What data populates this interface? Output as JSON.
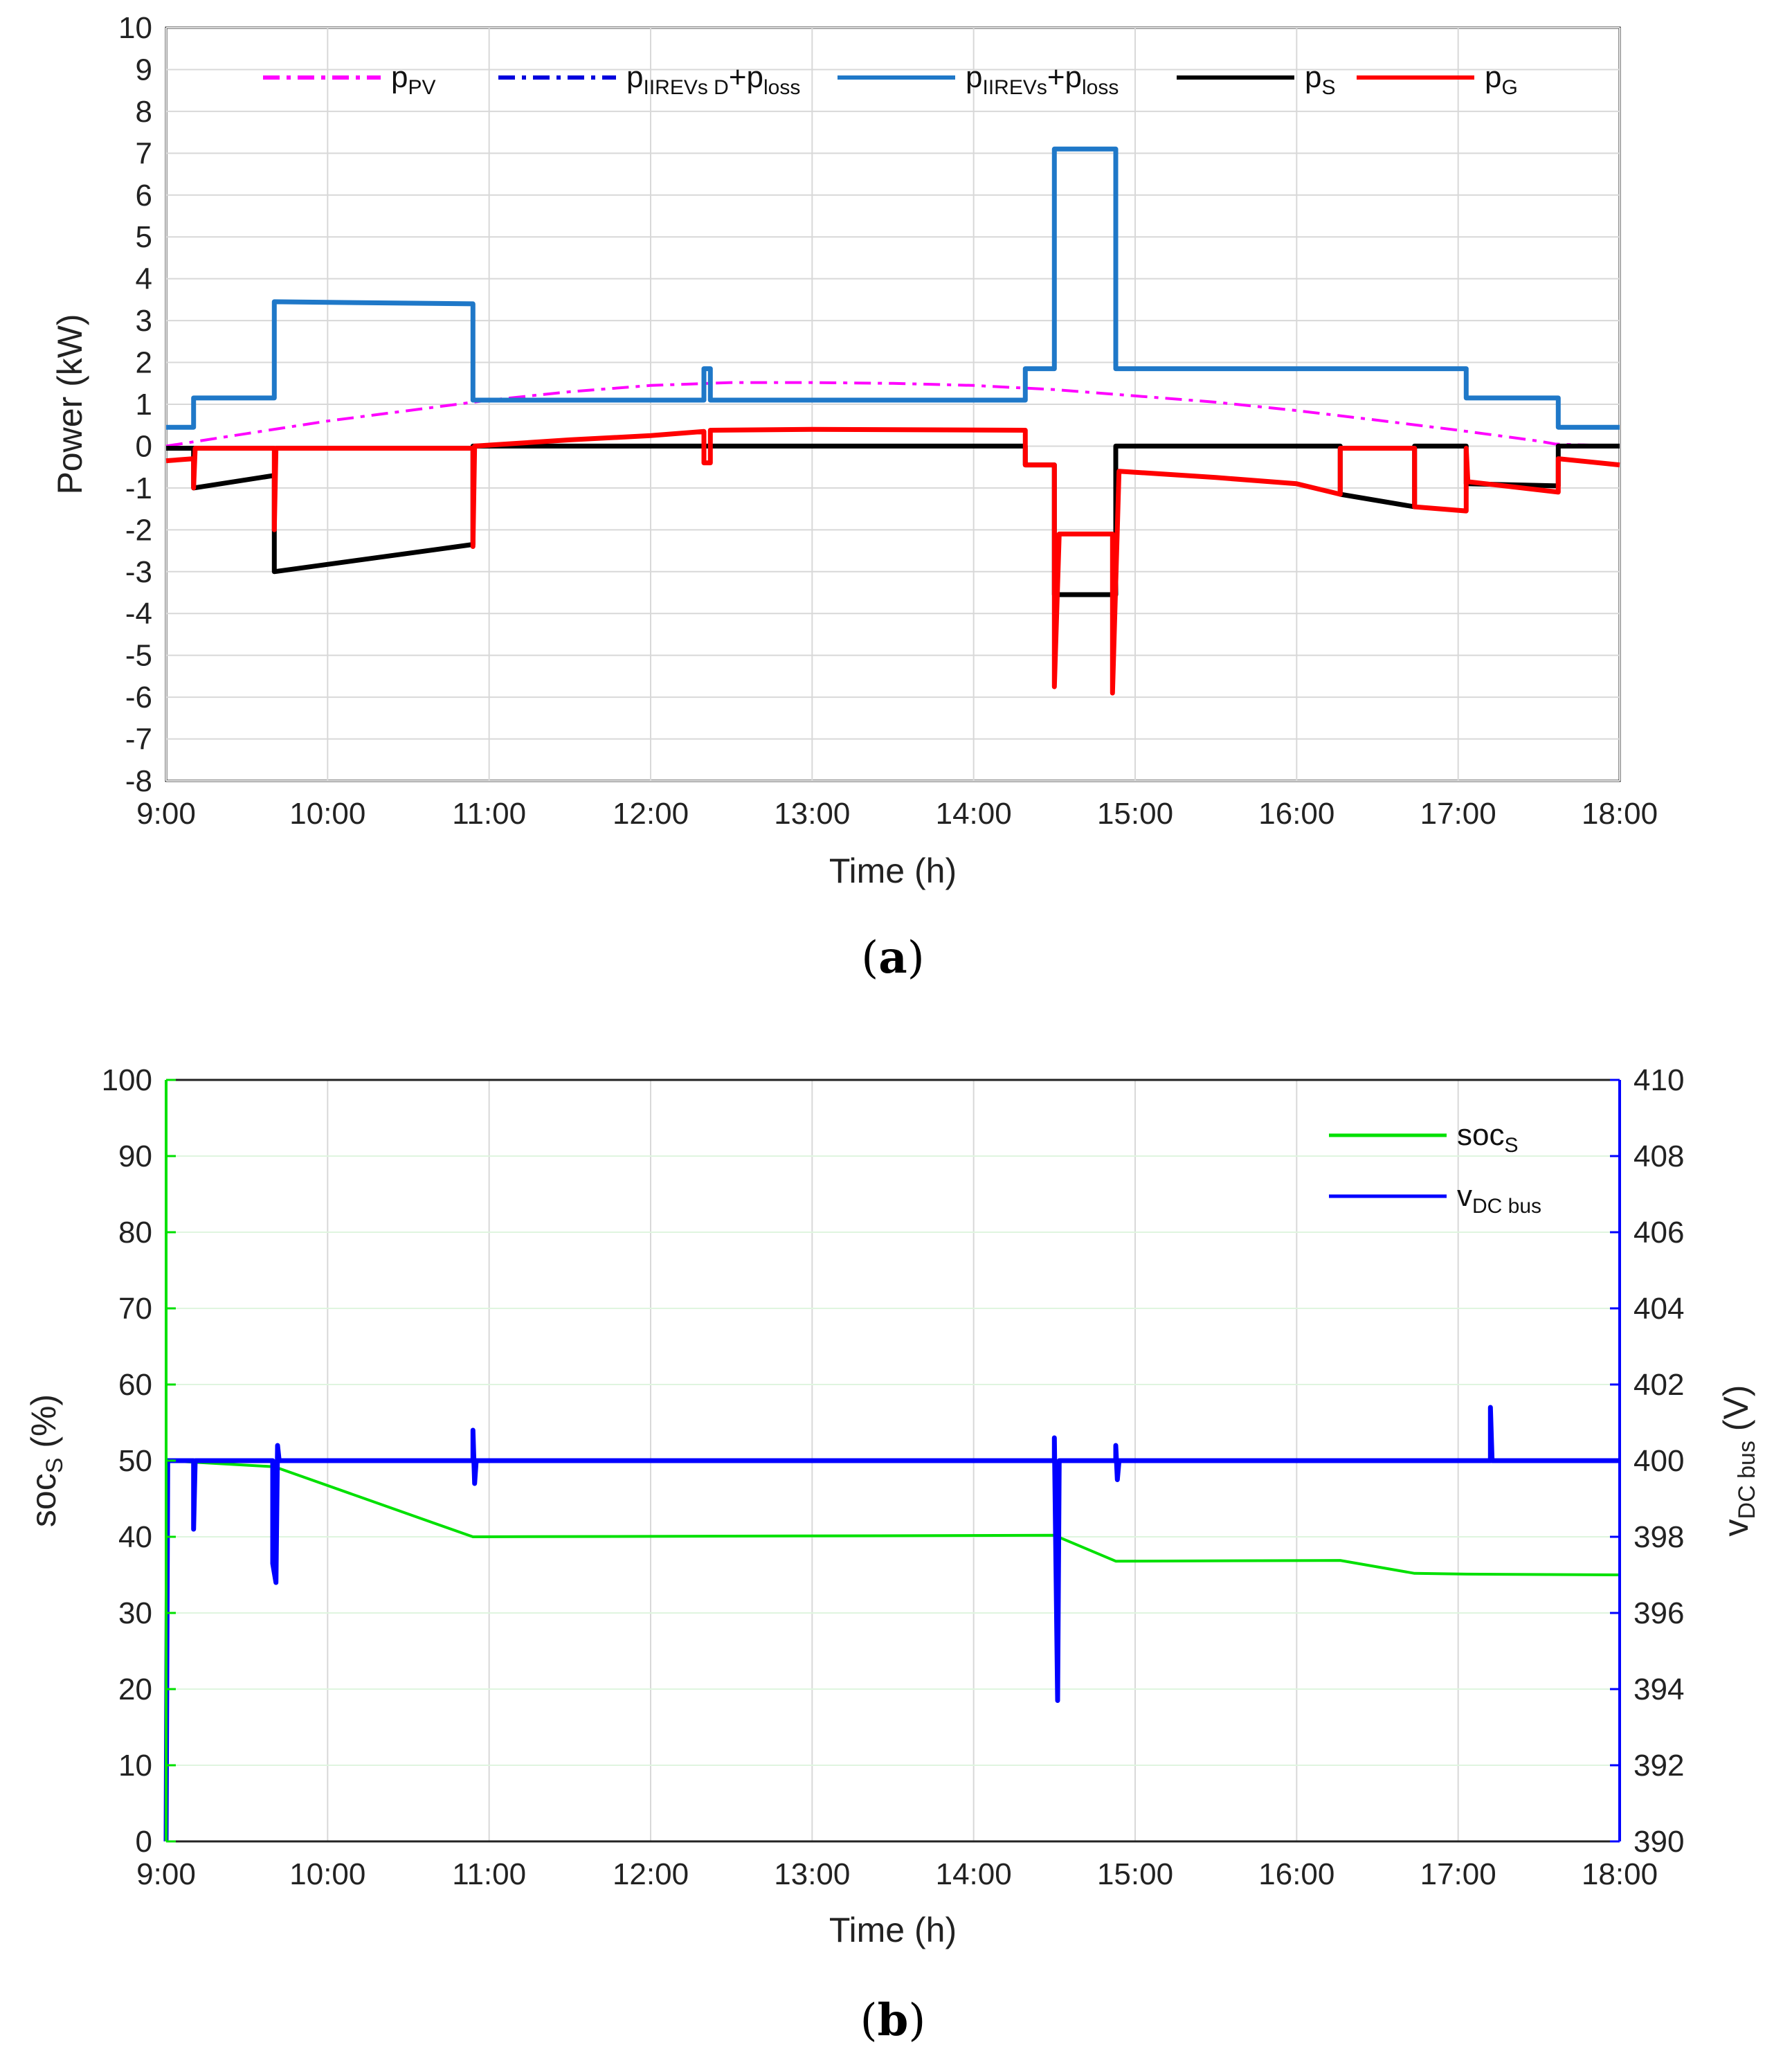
{
  "colors": {
    "pv": "#ff00ff",
    "evd": "#0000dd",
    "ev": "#1f78c8",
    "s": "#000000",
    "g": "#ff0000",
    "soc": "#00e000",
    "vbus": "#0000ff",
    "grid": "#d8d8d8"
  },
  "chart_data": [
    {
      "id": "a",
      "type": "line",
      "caption_label": "a",
      "xlabel": "Time (h)",
      "ylabel": "Power (kW)",
      "xlim": [
        9,
        18
      ],
      "ylim": [
        -8,
        10
      ],
      "x_ticks": [
        {
          "value": 9,
          "label": "9:00"
        },
        {
          "value": 10,
          "label": "10:00"
        },
        {
          "value": 11,
          "label": "11:00"
        },
        {
          "value": 12,
          "label": "12:00"
        },
        {
          "value": 13,
          "label": "13:00"
        },
        {
          "value": 14,
          "label": "14:00"
        },
        {
          "value": 15,
          "label": "15:00"
        },
        {
          "value": 16,
          "label": "16:00"
        },
        {
          "value": 17,
          "label": "17:00"
        },
        {
          "value": 18,
          "label": "18:00"
        }
      ],
      "y_ticks": [
        {
          "value": 10,
          "label": "10"
        },
        {
          "value": 9,
          "label": "9"
        },
        {
          "value": 8,
          "label": "8"
        },
        {
          "value": 7,
          "label": "7"
        },
        {
          "value": 6,
          "label": "6"
        },
        {
          "value": 5,
          "label": "5"
        },
        {
          "value": 4,
          "label": "4"
        },
        {
          "value": 3,
          "label": "3"
        },
        {
          "value": 2,
          "label": "2"
        },
        {
          "value": 1,
          "label": "1"
        },
        {
          "value": 0,
          "label": "0"
        },
        {
          "value": -1,
          "label": "-1"
        },
        {
          "value": -2,
          "label": "-2"
        },
        {
          "value": -3,
          "label": "-3"
        },
        {
          "value": -4,
          "label": "-4"
        },
        {
          "value": -5,
          "label": "-5"
        },
        {
          "value": -6,
          "label": "-6"
        },
        {
          "value": -7,
          "label": "-7"
        },
        {
          "value": -8,
          "label": "-8"
        }
      ],
      "grid": true,
      "legend_position": "top",
      "series": [
        {
          "key": "pv",
          "base": "p",
          "sub": "PV",
          "suffix": "",
          "sub2": "",
          "style": "dashdot",
          "points": [
            [
              9,
              0
            ],
            [
              9.5,
              0.3
            ],
            [
              10,
              0.6
            ],
            [
              10.5,
              0.85
            ],
            [
              11,
              1.1
            ],
            [
              11.5,
              1.3
            ],
            [
              12,
              1.45
            ],
            [
              12.5,
              1.52
            ],
            [
              13,
              1.52
            ],
            [
              13.5,
              1.5
            ],
            [
              14,
              1.45
            ],
            [
              14.5,
              1.35
            ],
            [
              15,
              1.2
            ],
            [
              15.5,
              1.05
            ],
            [
              16,
              0.85
            ],
            [
              16.5,
              0.62
            ],
            [
              17,
              0.38
            ],
            [
              17.5,
              0.12
            ],
            [
              17.6,
              0.05
            ],
            [
              18,
              0
            ]
          ]
        },
        {
          "key": "evd",
          "base": "p",
          "sub": "IIREVs D",
          "suffix": "+p",
          "sub2": "loss",
          "style": "dashdot",
          "points": []
        },
        {
          "key": "ev",
          "base": "p",
          "sub": "IIREVs",
          "suffix": "+p",
          "sub2": "loss",
          "style": "solid",
          "points": [
            [
              9,
              0.45
            ],
            [
              9.17,
              0.45
            ],
            [
              9.17,
              1.15
            ],
            [
              9.67,
              1.15
            ],
            [
              9.67,
              3.45
            ],
            [
              10.9,
              3.4
            ],
            [
              10.9,
              1.1
            ],
            [
              12.33,
              1.1
            ],
            [
              12.33,
              1.85
            ],
            [
              12.37,
              1.85
            ],
            [
              12.37,
              1.1
            ],
            [
              14.32,
              1.1
            ],
            [
              14.32,
              1.85
            ],
            [
              14.5,
              1.85
            ],
            [
              14.5,
              7.1
            ],
            [
              14.88,
              7.1
            ],
            [
              14.88,
              1.85
            ],
            [
              17.05,
              1.85
            ],
            [
              17.05,
              1.15
            ],
            [
              17.62,
              1.15
            ],
            [
              17.62,
              0.45
            ],
            [
              18,
              0.45
            ]
          ]
        },
        {
          "key": "s",
          "base": "p",
          "sub": "S",
          "suffix": "",
          "sub2": "",
          "style": "solid",
          "points": [
            [
              9,
              -0.05
            ],
            [
              9.17,
              -0.05
            ],
            [
              9.17,
              -1.0
            ],
            [
              9.67,
              -0.7
            ],
            [
              9.67,
              -3.0
            ],
            [
              10.9,
              -2.35
            ],
            [
              10.9,
              0
            ],
            [
              14.32,
              0
            ],
            [
              14.32,
              -0.45
            ],
            [
              14.5,
              -0.45
            ],
            [
              14.5,
              -3.55
            ],
            [
              14.88,
              -3.55
            ],
            [
              14.88,
              0
            ],
            [
              16.27,
              0
            ],
            [
              16.27,
              -1.15
            ],
            [
              16.73,
              -1.45
            ],
            [
              16.73,
              0
            ],
            [
              17.05,
              0
            ],
            [
              17.05,
              -0.9
            ],
            [
              17.62,
              -0.95
            ],
            [
              17.62,
              0
            ],
            [
              18,
              0
            ]
          ]
        },
        {
          "key": "g",
          "base": "p",
          "sub": "G",
          "suffix": "",
          "sub2": "",
          "style": "solid",
          "points": [
            [
              9,
              -0.35
            ],
            [
              9.17,
              -0.3
            ],
            [
              9.17,
              -1.0
            ],
            [
              9.18,
              -0.05
            ],
            [
              9.67,
              -0.05
            ],
            [
              9.67,
              -2.0
            ],
            [
              9.68,
              -0.05
            ],
            [
              10.9,
              -0.05
            ],
            [
              10.9,
              -2.4
            ],
            [
              10.91,
              0
            ],
            [
              11.5,
              0.15
            ],
            [
              12,
              0.25
            ],
            [
              12.33,
              0.35
            ],
            [
              12.33,
              -0.4
            ],
            [
              12.37,
              -0.4
            ],
            [
              12.37,
              0.38
            ],
            [
              13,
              0.4
            ],
            [
              14.32,
              0.38
            ],
            [
              14.32,
              -0.45
            ],
            [
              14.5,
              -0.45
            ],
            [
              14.5,
              -5.75
            ],
            [
              14.53,
              -2.1
            ],
            [
              14.86,
              -2.1
            ],
            [
              14.86,
              -5.9
            ],
            [
              14.9,
              -0.6
            ],
            [
              15.5,
              -0.75
            ],
            [
              16,
              -0.9
            ],
            [
              16.27,
              -1.15
            ],
            [
              16.27,
              -0.05
            ],
            [
              16.73,
              -0.05
            ],
            [
              16.73,
              -1.45
            ],
            [
              17.05,
              -1.55
            ],
            [
              17.05,
              -0.05
            ],
            [
              17.06,
              -0.85
            ],
            [
              17.62,
              -1.1
            ],
            [
              17.62,
              -0.3
            ],
            [
              18,
              -0.45
            ]
          ]
        }
      ]
    },
    {
      "id": "b",
      "type": "line",
      "caption_label": "b",
      "xlabel": "Time (h)",
      "ylabel_left": {
        "base": "soc",
        "sub": "S",
        "suffix": " (%)"
      },
      "ylabel_right": {
        "base": "v",
        "sub": "DC bus",
        "suffix": " (V)"
      },
      "xlim": [
        9,
        18
      ],
      "ylim_left": [
        0,
        100
      ],
      "ylim_right": [
        390,
        410
      ],
      "x_ticks": [
        {
          "value": 9,
          "label": "9:00"
        },
        {
          "value": 10,
          "label": "10:00"
        },
        {
          "value": 11,
          "label": "11:00"
        },
        {
          "value": 12,
          "label": "12:00"
        },
        {
          "value": 13,
          "label": "13:00"
        },
        {
          "value": 14,
          "label": "14:00"
        },
        {
          "value": 15,
          "label": "15:00"
        },
        {
          "value": 16,
          "label": "16:00"
        },
        {
          "value": 17,
          "label": "17:00"
        },
        {
          "value": 18,
          "label": "18:00"
        }
      ],
      "y_ticks_left": [
        {
          "value": 100,
          "label": "100"
        },
        {
          "value": 90,
          "label": "90"
        },
        {
          "value": 80,
          "label": "80"
        },
        {
          "value": 70,
          "label": "70"
        },
        {
          "value": 60,
          "label": "60"
        },
        {
          "value": 50,
          "label": "50"
        },
        {
          "value": 40,
          "label": "40"
        },
        {
          "value": 30,
          "label": "30"
        },
        {
          "value": 20,
          "label": "20"
        },
        {
          "value": 10,
          "label": "10"
        },
        {
          "value": 0,
          "label": "0"
        }
      ],
      "y_ticks_right": [
        {
          "value": 410,
          "label": "410"
        },
        {
          "value": 408,
          "label": "408"
        },
        {
          "value": 406,
          "label": "406"
        },
        {
          "value": 404,
          "label": "404"
        },
        {
          "value": 402,
          "label": "402"
        },
        {
          "value": 400,
          "label": "400"
        },
        {
          "value": 398,
          "label": "398"
        },
        {
          "value": 396,
          "label": "396"
        },
        {
          "value": 394,
          "label": "394"
        },
        {
          "value": 392,
          "label": "392"
        },
        {
          "value": 390,
          "label": "390"
        }
      ],
      "grid": true,
      "legend_position": "top-right",
      "series": [
        {
          "key": "soc",
          "base": "soc",
          "sub": "S",
          "axis": "left",
          "points": [
            [
              9,
              50
            ],
            [
              9.67,
              49.2
            ],
            [
              10.9,
              40
            ],
            [
              14.5,
              40.2
            ],
            [
              14.88,
              36.8
            ],
            [
              16.27,
              36.9
            ],
            [
              16.73,
              35.2
            ],
            [
              17.05,
              35.1
            ],
            [
              18,
              35
            ]
          ]
        },
        {
          "key": "vbus",
          "base": "v",
          "sub": "DC bus",
          "axis": "right",
          "points": [
            [
              9.0,
              390
            ],
            [
              9.01,
              400
            ],
            [
              9.17,
              400
            ],
            [
              9.17,
              398.2
            ],
            [
              9.18,
              400
            ],
            [
              9.66,
              400
            ],
            [
              9.66,
              397.3
            ],
            [
              9.68,
              396.8
            ],
            [
              9.69,
              400.4
            ],
            [
              9.7,
              400
            ],
            [
              10.9,
              400
            ],
            [
              10.9,
              400.8
            ],
            [
              10.91,
              399.4
            ],
            [
              10.92,
              400
            ],
            [
              14.5,
              400
            ],
            [
              14.5,
              400.6
            ],
            [
              14.52,
              393.7
            ],
            [
              14.53,
              400
            ],
            [
              14.88,
              400
            ],
            [
              14.88,
              400.4
            ],
            [
              14.89,
              399.5
            ],
            [
              14.9,
              400
            ],
            [
              17.2,
              400
            ],
            [
              17.2,
              401.4
            ],
            [
              17.21,
              400
            ],
            [
              18,
              400
            ]
          ]
        }
      ]
    }
  ]
}
